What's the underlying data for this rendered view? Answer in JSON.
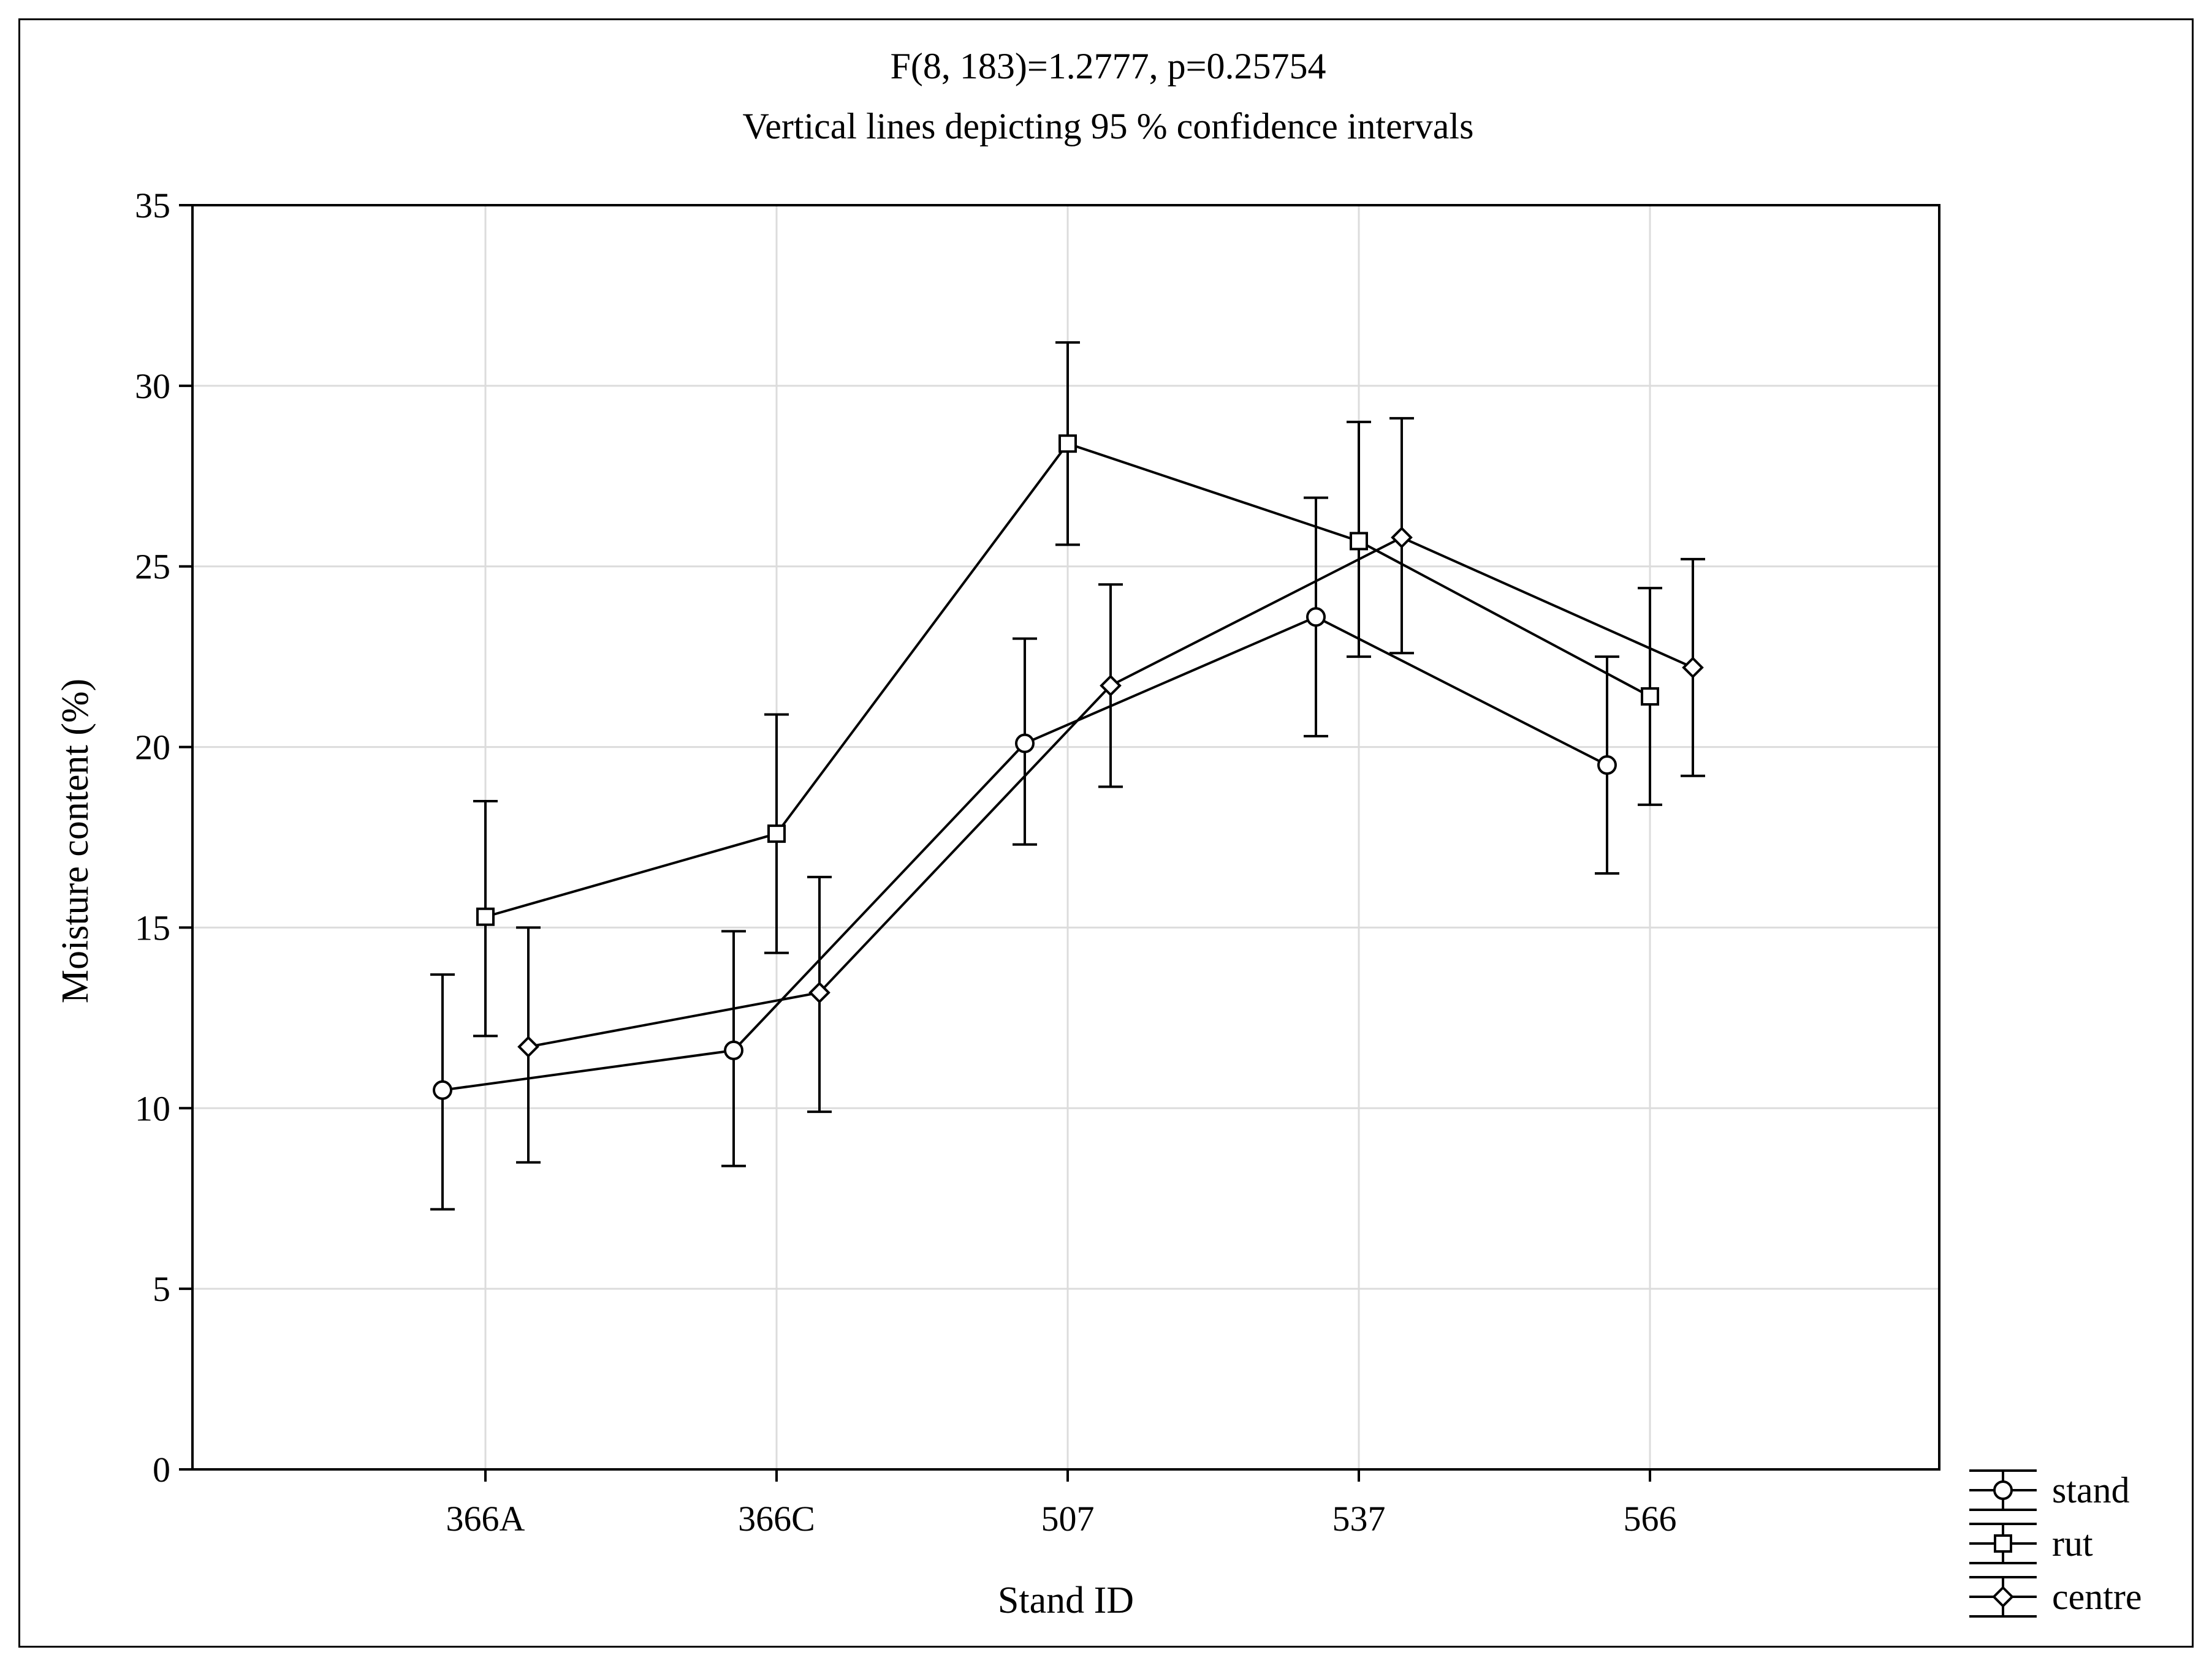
{
  "chart_data": {
    "type": "line",
    "title": "F(8, 183)=1.2777, p=0.25754",
    "subtitle": "Vertical lines depicting 95 % confidence intervals",
    "xlabel": "Stand ID",
    "ylabel": "Moisture content (%)",
    "categories": [
      "366A",
      "366C",
      "507",
      "537",
      "566"
    ],
    "ylim": [
      0,
      35
    ],
    "yticks": [
      0,
      5,
      10,
      15,
      20,
      25,
      30,
      35
    ],
    "grid": true,
    "legend_position": "bottom-right outside",
    "series": [
      {
        "name": "stand",
        "marker": "circle",
        "values": [
          10.5,
          11.6,
          20.1,
          23.6,
          19.5
        ],
        "ci_low": [
          7.2,
          8.4,
          17.3,
          20.3,
          16.5
        ],
        "ci_high": [
          13.7,
          14.9,
          23.0,
          26.9,
          22.5
        ]
      },
      {
        "name": "rut",
        "marker": "square",
        "values": [
          15.3,
          17.6,
          28.4,
          25.7,
          21.4
        ],
        "ci_low": [
          12.0,
          14.3,
          25.6,
          22.5,
          18.4
        ],
        "ci_high": [
          18.5,
          20.9,
          31.2,
          29.0,
          24.4
        ]
      },
      {
        "name": "centre",
        "marker": "diamond",
        "values": [
          11.7,
          13.2,
          21.7,
          25.8,
          22.2
        ],
        "ci_low": [
          8.5,
          9.9,
          18.9,
          22.6,
          19.2
        ],
        "ci_high": [
          15.0,
          16.4,
          24.5,
          29.1,
          25.2
        ]
      }
    ]
  }
}
